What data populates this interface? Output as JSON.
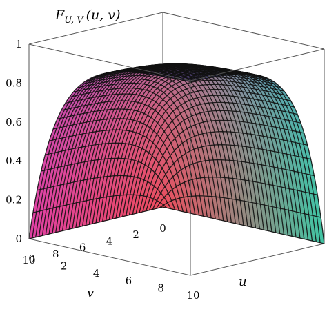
{
  "chart_data": {
    "type": "surface3d",
    "title": {
      "main": "F",
      "subscript": "U, V",
      "args": "(u, v)"
    },
    "xlabel": "u",
    "ylabel": "v",
    "zlabel": "",
    "xlim": [
      0,
      10
    ],
    "ylim": [
      0,
      10
    ],
    "zlim": [
      0,
      1
    ],
    "z_ticks": [
      "0",
      "0.2",
      "0.4",
      "0.6",
      "0.8",
      "1"
    ],
    "u_ticks": [
      "0",
      "2",
      "4",
      "6",
      "8",
      "10"
    ],
    "v_ticks": [
      "0",
      "2",
      "4",
      "6",
      "8",
      "10"
    ],
    "surface": {
      "description_formula": "F(u,v) = (1-exp(-0.6u))(1-exp(-0.6v))",
      "max_value": 1.0,
      "min_value": 0.0
    },
    "colors": {
      "corner_u0_v0": "#f04a5a",
      "corner_u0_v10": "#e23fa2",
      "corner_u10_v10": "#6c4fb8",
      "corner_u10_v0": "#3ec7a3",
      "corner_front": "#58d43a"
    }
  }
}
